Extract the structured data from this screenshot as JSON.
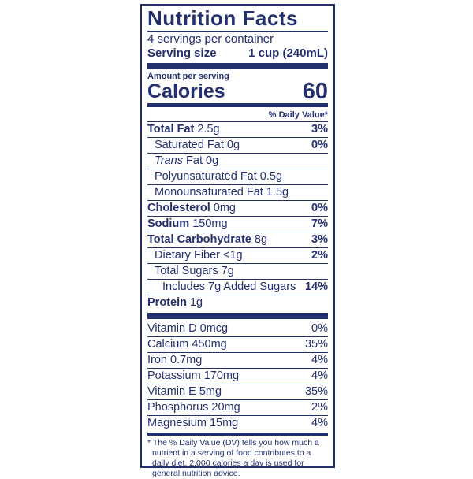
{
  "colors": {
    "navy": "#24306e",
    "background": "#ffffff"
  },
  "label": {
    "title": "Nutrition Facts",
    "servings_per_container": "4 servings per container",
    "serving_size_label": "Serving size",
    "serving_size_value": "1 cup (240mL)",
    "amount_per_serving": "Amount per serving",
    "calories_label": "Calories",
    "calories_value": "60",
    "daily_value_header": "% Daily Value*",
    "nutrients": [
      {
        "italic": "",
        "bold": "Total Fat",
        "regular": " 2.5g",
        "pct": "3%",
        "pct_bold": true,
        "indent": 0
      },
      {
        "italic": "",
        "bold": "",
        "regular": "Saturated Fat 0g",
        "pct": "0%",
        "pct_bold": true,
        "indent": 1
      },
      {
        "italic": "Trans",
        "bold": "",
        "regular": " Fat 0g",
        "pct": "",
        "pct_bold": false,
        "indent": 1
      },
      {
        "italic": "",
        "bold": "",
        "regular": "Polyunsaturated Fat 0.5g",
        "pct": "",
        "pct_bold": false,
        "indent": 1
      },
      {
        "italic": "",
        "bold": "",
        "regular": "Monounsaturated Fat 1.5g",
        "pct": "",
        "pct_bold": false,
        "indent": 1
      },
      {
        "italic": "",
        "bold": "Cholesterol",
        "regular": " 0mg",
        "pct": "0%",
        "pct_bold": true,
        "indent": 0
      },
      {
        "italic": "",
        "bold": "Sodium",
        "regular": " 150mg",
        "pct": "7%",
        "pct_bold": true,
        "indent": 0
      },
      {
        "italic": "",
        "bold": "Total Carbohydrate",
        "regular": " 8g",
        "pct": "3%",
        "pct_bold": true,
        "indent": 0
      },
      {
        "italic": "",
        "bold": "",
        "regular": "Dietary Fiber <1g",
        "pct": "2%",
        "pct_bold": true,
        "indent": 1
      },
      {
        "italic": "",
        "bold": "",
        "regular": "Total Sugars 7g",
        "pct": "",
        "pct_bold": false,
        "indent": 1
      },
      {
        "italic": "",
        "bold": "",
        "regular": "Includes 7g Added Sugars",
        "pct": "14%",
        "pct_bold": true,
        "indent": 2
      },
      {
        "italic": "",
        "bold": "Protein",
        "regular": " 1g",
        "pct": "",
        "pct_bold": false,
        "indent": 0
      }
    ],
    "vitamins": [
      {
        "italic": "",
        "bold": "",
        "regular": "Vitamin D 0mcg",
        "pct": "0%",
        "pct_bold": false,
        "indent": 0
      },
      {
        "italic": "",
        "bold": "",
        "regular": "Calcium 450mg",
        "pct": "35%",
        "pct_bold": false,
        "indent": 0
      },
      {
        "italic": "",
        "bold": "",
        "regular": "Iron 0.7mg",
        "pct": "4%",
        "pct_bold": false,
        "indent": 0
      },
      {
        "italic": "",
        "bold": "",
        "regular": "Potassium 170mg",
        "pct": "4%",
        "pct_bold": false,
        "indent": 0
      },
      {
        "italic": "",
        "bold": "",
        "regular": "Vitamin E 5mg",
        "pct": "35%",
        "pct_bold": false,
        "indent": 0
      },
      {
        "italic": "",
        "bold": "",
        "regular": "Phosphorus 20mg",
        "pct": "2%",
        "pct_bold": false,
        "indent": 0
      },
      {
        "italic": "",
        "bold": "",
        "regular": "Magnesium 15mg",
        "pct": "4%",
        "pct_bold": false,
        "indent": 0
      }
    ],
    "footnote": "* The % Daily Value (DV) tells you how much a nutrient in a serving of food contributes to a daily diet. 2,000 calories a day is used for general nutrition advice."
  }
}
